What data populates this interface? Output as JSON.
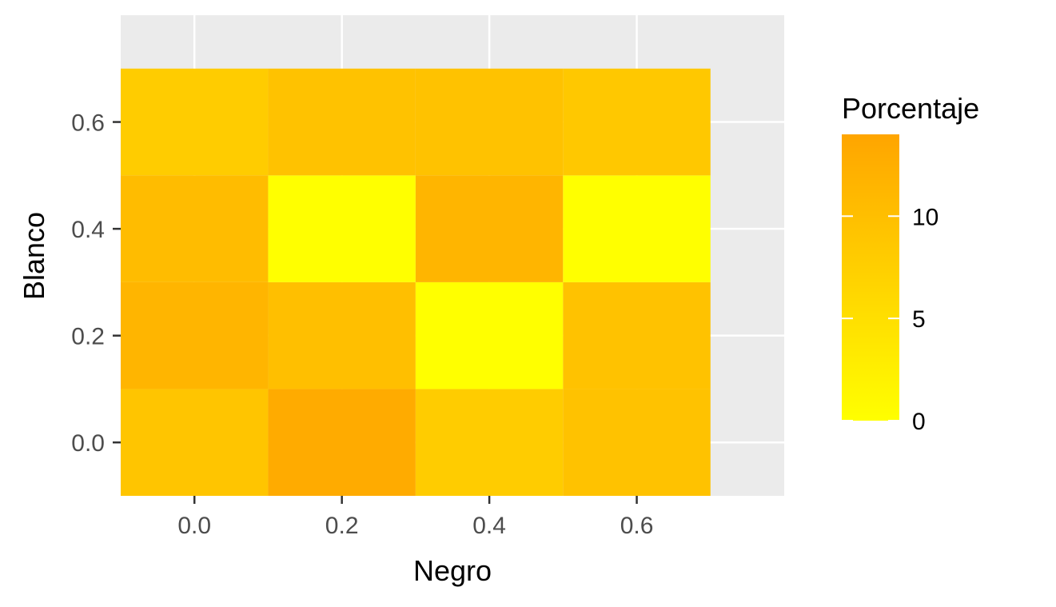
{
  "chart_data": {
    "type": "heatmap",
    "title": "",
    "xlabel": "Negro",
    "ylabel": "Blanco",
    "x": [
      0.0,
      0.2,
      0.4,
      0.6
    ],
    "y": [
      0.0,
      0.2,
      0.4,
      0.6
    ],
    "xticks": [
      "0.0",
      "0.2",
      "0.4",
      "0.6"
    ],
    "yticks": [
      "0.0",
      "0.2",
      "0.4",
      "0.6"
    ],
    "xlim": [
      -0.1,
      0.8
    ],
    "ylim": [
      -0.1,
      0.8
    ],
    "cells": [
      {
        "x": 0.0,
        "y": 0.0,
        "value": 9
      },
      {
        "x": 0.2,
        "y": 0.0,
        "value": 13
      },
      {
        "x": 0.4,
        "y": 0.0,
        "value": 8
      },
      {
        "x": 0.6,
        "y": 0.0,
        "value": 9.5
      },
      {
        "x": 0.0,
        "y": 0.2,
        "value": 11.5
      },
      {
        "x": 0.2,
        "y": 0.2,
        "value": 10
      },
      {
        "x": 0.4,
        "y": 0.2,
        "value": 0
      },
      {
        "x": 0.6,
        "y": 0.2,
        "value": 9.5
      },
      {
        "x": 0.0,
        "y": 0.4,
        "value": 10.5
      },
      {
        "x": 0.2,
        "y": 0.4,
        "value": 0
      },
      {
        "x": 0.4,
        "y": 0.4,
        "value": 11.5
      },
      {
        "x": 0.6,
        "y": 0.4,
        "value": 0
      },
      {
        "x": 0.0,
        "y": 0.6,
        "value": 8
      },
      {
        "x": 0.2,
        "y": 0.6,
        "value": 9.5
      },
      {
        "x": 0.4,
        "y": 0.6,
        "value": 9.5
      },
      {
        "x": 0.6,
        "y": 0.6,
        "value": 8.5
      }
    ],
    "legend": {
      "title": "Porcentaje",
      "position": "right",
      "range": [
        0,
        14
      ],
      "ticks": [
        {
          "value": 0,
          "label": "0"
        },
        {
          "value": 5,
          "label": "5"
        },
        {
          "value": 10,
          "label": "10"
        }
      ],
      "low_color": "#FFFF00",
      "high_color": "#FFA500"
    },
    "grid": true,
    "panel_background": "#EBEBEB",
    "grid_color": "#FFFFFF",
    "axis_text_color": "#4D4D4D",
    "axis_title_color": "#000000"
  }
}
